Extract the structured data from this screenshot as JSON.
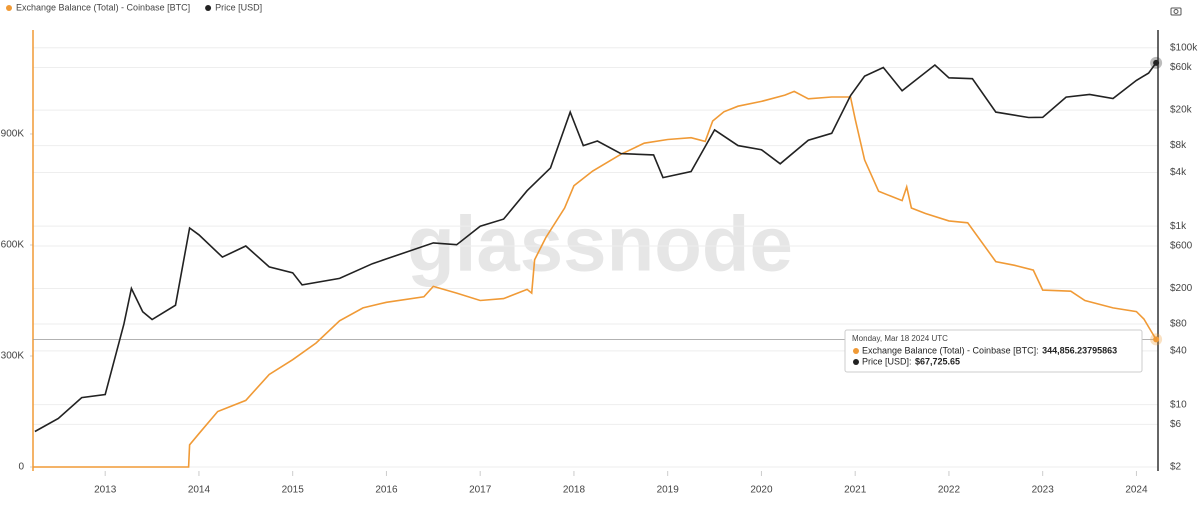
{
  "chart_data": {
    "type": "line",
    "watermark": "glassnode",
    "xlim": [
      2012.23,
      2024.23
    ],
    "xticks": [
      2013,
      2014,
      2015,
      2016,
      2017,
      2018,
      2019,
      2020,
      2021,
      2022,
      2023,
      2024
    ],
    "ylim": [
      0,
      1181000
    ],
    "yticks": [
      0,
      {
        "value": 300000,
        "label": "300K"
      },
      {
        "value": 600000,
        "label": "600K"
      },
      {
        "value": 900000,
        "label": "900K"
      }
    ],
    "y2lim": [
      2,
      158000
    ],
    "y2log": true,
    "y2ticks": [
      {
        "value": 2,
        "label": "$2"
      },
      {
        "value": 6,
        "label": "$6"
      },
      {
        "value": 10,
        "label": "$10"
      },
      {
        "value": 40,
        "label": "$40"
      },
      {
        "value": 80,
        "label": "$80"
      },
      {
        "value": 200,
        "label": "$200"
      },
      {
        "value": 600,
        "label": "$600"
      },
      {
        "value": 1000,
        "label": "$1k"
      },
      {
        "value": 4000,
        "label": "$4k"
      },
      {
        "value": 8000,
        "label": "$8k"
      },
      {
        "value": 20000,
        "label": "$20k"
      },
      {
        "value": 60000,
        "label": "$60k"
      },
      {
        "value": 100000,
        "label": "$100k"
      }
    ],
    "grid": true,
    "legend": "top-left",
    "series": [
      {
        "name": "Exchange Balance (Total) - Coinbase [BTC]",
        "color": "#f09a36",
        "x": [
          2012.23,
          2013.89,
          2013.9,
          2014.0,
          2014.2,
          2014.5,
          2014.75,
          2015.0,
          2015.25,
          2015.5,
          2015.75,
          2016.0,
          2016.4,
          2016.5,
          2016.75,
          2017.0,
          2017.25,
          2017.5,
          2017.55,
          2017.58,
          2017.7,
          2017.9,
          2018.0,
          2018.2,
          2018.5,
          2018.75,
          2019.0,
          2019.25,
          2019.4,
          2019.48,
          2019.6,
          2019.75,
          2020.0,
          2020.25,
          2020.35,
          2020.5,
          2020.75,
          2020.95,
          2021.0,
          2021.1,
          2021.25,
          2021.5,
          2021.55,
          2021.6,
          2021.75,
          2022.0,
          2022.2,
          2022.5,
          2022.7,
          2022.9,
          2023.0,
          2023.3,
          2023.45,
          2023.75,
          2024.0,
          2024.08,
          2024.15,
          2024.21
        ],
        "values": [
          0,
          0,
          60000,
          90000,
          150000,
          180000,
          250000,
          290000,
          335000,
          395000,
          430000,
          445000,
          460000,
          488000,
          470000,
          450000,
          455000,
          480000,
          470000,
          560000,
          620000,
          700000,
          760000,
          800000,
          845000,
          875000,
          885000,
          890000,
          880000,
          935000,
          960000,
          975000,
          988000,
          1005000,
          1015000,
          995000,
          1000000,
          1000000,
          940000,
          830000,
          745000,
          720000,
          757000,
          700000,
          685000,
          665000,
          660000,
          555000,
          545000,
          532000,
          478000,
          475000,
          450000,
          430000,
          420000,
          400000,
          370000,
          344856.23795863
        ]
      },
      {
        "name": "Price [USD]",
        "color": "#222222",
        "axis": "y2",
        "x": [
          2012.25,
          2012.5,
          2012.75,
          2013.0,
          2013.2,
          2013.28,
          2013.4,
          2013.5,
          2013.75,
          2013.9,
          2014.0,
          2014.25,
          2014.5,
          2014.75,
          2015.0,
          2015.1,
          2015.5,
          2015.85,
          2016.0,
          2016.5,
          2016.75,
          2017.0,
          2017.25,
          2017.5,
          2017.75,
          2017.96,
          2018.1,
          2018.25,
          2018.5,
          2018.85,
          2018.95,
          2019.25,
          2019.5,
          2019.75,
          2020.0,
          2020.2,
          2020.5,
          2020.75,
          2020.95,
          2021.1,
          2021.3,
          2021.5,
          2021.85,
          2022.0,
          2022.25,
          2022.5,
          2022.85,
          2023.0,
          2023.25,
          2023.5,
          2023.75,
          2024.0,
          2024.13,
          2024.21
        ],
        "values": [
          5,
          7,
          12,
          13,
          80,
          200,
          110,
          90,
          130,
          955,
          800,
          450,
          600,
          350,
          300,
          220,
          260,
          380,
          430,
          650,
          620,
          1000,
          1200,
          2500,
          4500,
          19000,
          8000,
          9000,
          6500,
          6300,
          3500,
          4100,
          12000,
          8000,
          7200,
          5000,
          9200,
          11000,
          29000,
          48000,
          60000,
          33000,
          64000,
          46000,
          45000,
          19000,
          16500,
          16600,
          28000,
          30000,
          27000,
          43000,
          52000,
          67725.65
        ]
      }
    ],
    "tooltip": {
      "title": "Monday, Mar 18 2024 UTC",
      "values": [
        "344,856.23795863",
        "$67,725.65"
      ]
    }
  }
}
